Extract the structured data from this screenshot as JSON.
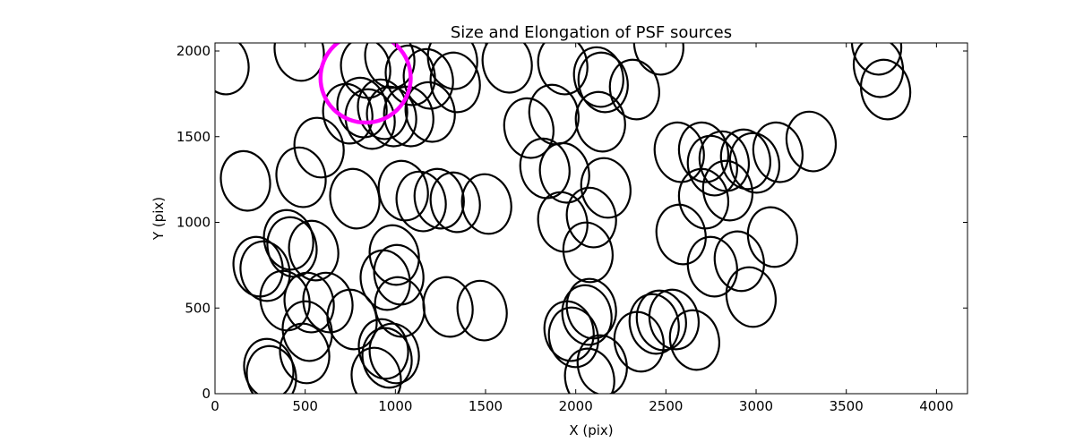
{
  "chart_data": {
    "type": "scatter",
    "title": "Size and Elongation of PSF sources",
    "xlabel": "X (pix)",
    "ylabel": "Y (pix)",
    "xlim": [
      0,
      4172
    ],
    "ylim": [
      0,
      2047
    ],
    "xticks": [
      0,
      500,
      1000,
      1500,
      2000,
      2500,
      3000,
      3500,
      4000
    ],
    "yticks": [
      0,
      500,
      1000,
      1500,
      2000
    ],
    "grid": false,
    "marker": "ellipse",
    "ellipse_width": 270,
    "ellipse_height": 350,
    "ellipse_angle_deg": -12,
    "edge_color": "#000000",
    "highlight": {
      "x": 835,
      "y": 1843,
      "width": 500,
      "height": 522,
      "color": "#ff00ff"
    },
    "points": [
      [
        50,
        1921
      ],
      [
        467,
        2000
      ],
      [
        835,
        1900
      ],
      [
        969,
        1958
      ],
      [
        1083,
        1858
      ],
      [
        1183,
        1837
      ],
      [
        1317,
        1952
      ],
      [
        1332,
        1817
      ],
      [
        1620,
        1931
      ],
      [
        1928,
        1921
      ],
      [
        2127,
        1848
      ],
      [
        2152,
        1817
      ],
      [
        2326,
        1775
      ],
      [
        2460,
        2036
      ],
      [
        3668,
        2036
      ],
      [
        3678,
        1905
      ],
      [
        3718,
        1775
      ],
      [
        736,
        1634
      ],
      [
        815,
        1670
      ],
      [
        860,
        1603
      ],
      [
        929,
        1660
      ],
      [
        979,
        1618
      ],
      [
        1074,
        1618
      ],
      [
        1193,
        1644
      ],
      [
        1740,
        1550
      ],
      [
        1879,
        1629
      ],
      [
        2137,
        1587
      ],
      [
        577,
        1436
      ],
      [
        169,
        1242
      ],
      [
        477,
        1263
      ],
      [
        775,
        1138
      ],
      [
        1044,
        1185
      ],
      [
        1143,
        1122
      ],
      [
        1243,
        1138
      ],
      [
        1332,
        1117
      ],
      [
        1506,
        1107
      ],
      [
        1829,
        1315
      ],
      [
        1938,
        1289
      ],
      [
        2167,
        1201
      ],
      [
        1928,
        1002
      ],
      [
        2087,
        1028
      ],
      [
        2068,
        825
      ],
      [
        2574,
        1409
      ],
      [
        2709,
        1409
      ],
      [
        2758,
        1331
      ],
      [
        2823,
        1357
      ],
      [
        2942,
        1368
      ],
      [
        2992,
        1347
      ],
      [
        3121,
        1409
      ],
      [
        3305,
        1472
      ],
      [
        2709,
        1138
      ],
      [
        2843,
        1185
      ],
      [
        2584,
        929
      ],
      [
        2758,
        741
      ],
      [
        2907,
        773
      ],
      [
        2972,
        564
      ],
      [
        3091,
        914
      ],
      [
        408,
        898
      ],
      [
        427,
        856
      ],
      [
        547,
        835
      ],
      [
        239,
        741
      ],
      [
        278,
        715
      ],
      [
        994,
        809
      ],
      [
        1019,
        694
      ],
      [
        944,
        663
      ],
      [
        388,
        543
      ],
      [
        522,
        532
      ],
      [
        626,
        532
      ],
      [
        760,
        433
      ],
      [
        1024,
        506
      ],
      [
        1292,
        506
      ],
      [
        1481,
        485
      ],
      [
        298,
        146
      ],
      [
        313,
        104
      ],
      [
        497,
        235
      ],
      [
        512,
        365
      ],
      [
        934,
        261
      ],
      [
        954,
        209
      ],
      [
        994,
        235
      ],
      [
        894,
        94
      ],
      [
        2077,
        89
      ],
      [
        2147,
        167
      ],
      [
        1963,
        365
      ],
      [
        1988,
        329
      ],
      [
        2062,
        459
      ],
      [
        2087,
        496
      ],
      [
        2351,
        303
      ],
      [
        2435,
        407
      ],
      [
        2475,
        428
      ],
      [
        2545,
        433
      ],
      [
        2659,
        313
      ]
    ]
  }
}
